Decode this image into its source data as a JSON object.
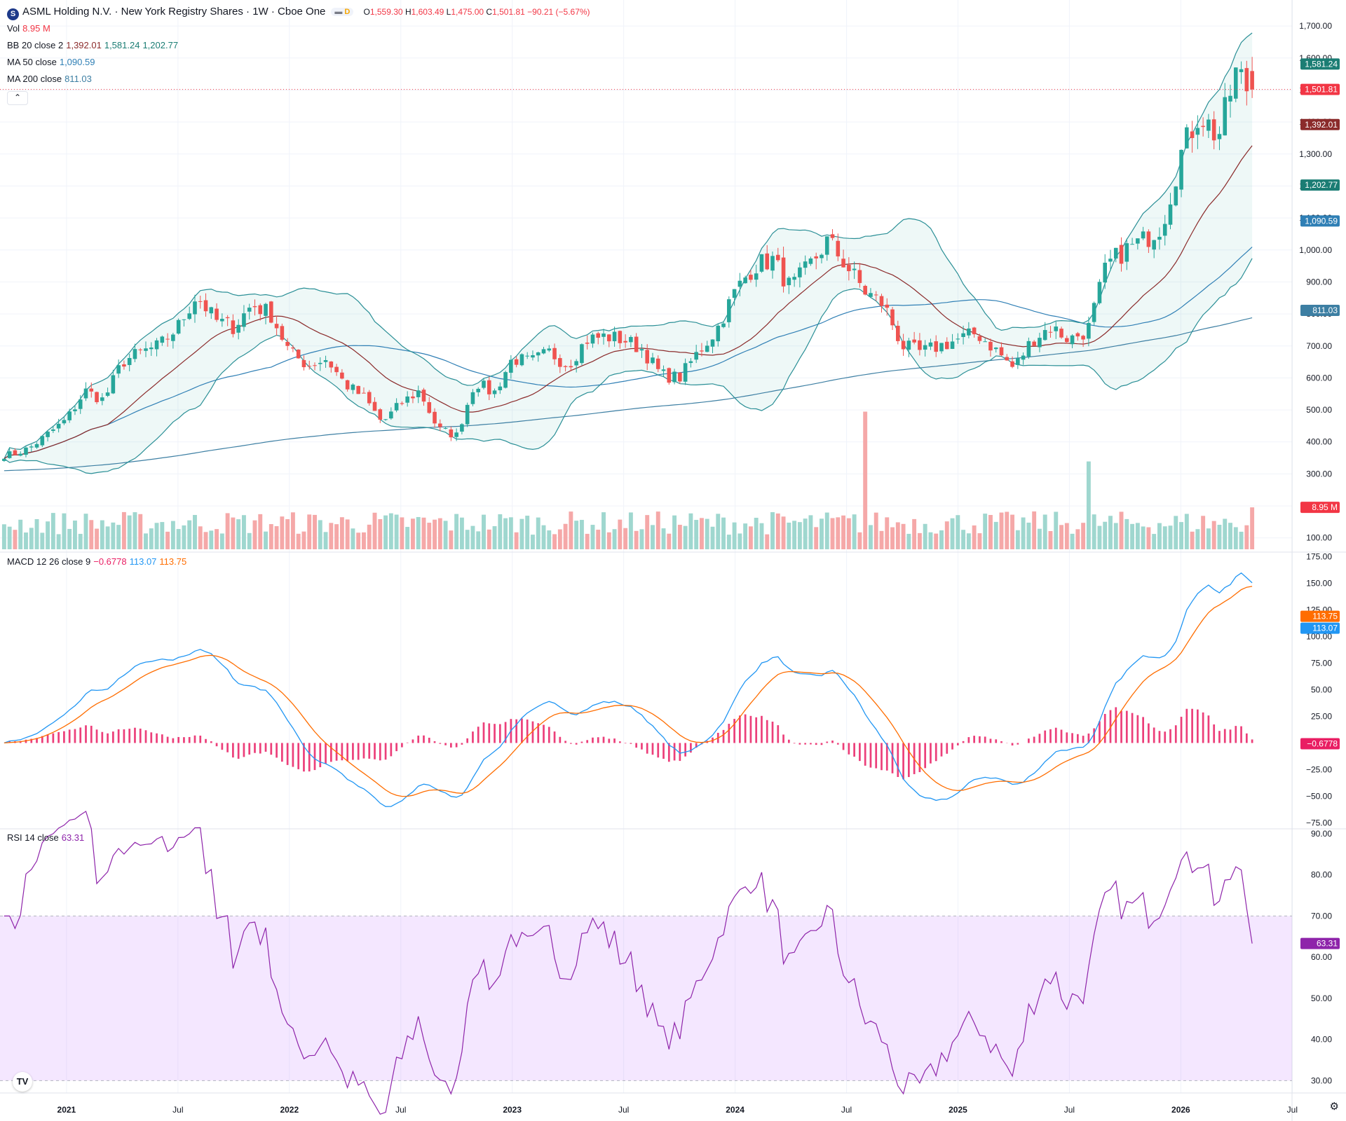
{
  "header": {
    "symbol_letter": "S",
    "title": "ASML Holding N.V. · New York Registry Shares · 1W · Cboe One",
    "chip_label": "D",
    "ohlc": {
      "o_label": "O",
      "o": "1,559.30",
      "h_label": "H",
      "h": "1,603.49",
      "l_label": "L",
      "l": "1,475.00",
      "c_label": "C",
      "c": "1,501.81",
      "change": "−90.21 (−5.67%)"
    }
  },
  "legends": {
    "vol": {
      "name": "Vol",
      "value": "8.95 M"
    },
    "bb": {
      "name": "BB",
      "params": "20 close 2",
      "v1": "1,392.01",
      "v2": "1,581.24",
      "v3": "1,202.77"
    },
    "ma50": {
      "name": "MA",
      "params": "50 close",
      "value": "1,090.59"
    },
    "ma200": {
      "name": "MA",
      "params": "200 close",
      "value": "811.03"
    },
    "macd": {
      "name": "MACD",
      "params": "12 26 close 9",
      "v1": "−0.6778",
      "v2": "113.07",
      "v3": "113.75"
    },
    "rsi": {
      "name": "RSI",
      "params": "14 close",
      "value": "63.31"
    }
  },
  "controls": {
    "collapse": "⌃",
    "logo": "TV",
    "settings": "⚙"
  },
  "colors": {
    "up": "#26a69a",
    "down": "#ef5350",
    "vol_up": "#9fd7cf",
    "vol_down": "#f5a8a8",
    "bb_basis": "#8b2b2b",
    "bb_band": "#2a8f96",
    "bb_fill": "rgba(38,166,154,0.08)",
    "ma50": "#2f7fb5",
    "ma200": "#3d7fa3",
    "macd": "#2196f3",
    "signal": "#ff6d00",
    "hist": "#e91e63",
    "rsi": "#8e24aa",
    "rsi_band": "rgba(186,104,255,0.16)",
    "grid": "#f0f3fa",
    "axis_text": "#131722"
  },
  "chart_data": [
    {
      "type": "candlestick",
      "title": "ASML Holding N.V. · New York Registry Shares · 1W · Cboe One",
      "ylim": [
        60,
        1720
      ],
      "y_ticks": [
        100,
        200,
        300,
        400,
        500,
        600,
        700,
        800,
        900,
        1000,
        1100,
        1200,
        1300,
        1400,
        1500,
        1600,
        1700
      ],
      "x_ticks": [
        "2021",
        "Jul",
        "2022",
        "Jul",
        "2023",
        "Jul",
        "2024",
        "Jul",
        "2025",
        "Jul",
        "2026",
        "Jul"
      ],
      "close_anchors": [
        [
          "2020-10",
          360
        ],
        [
          "2020-11",
          380
        ],
        [
          "2021-01",
          470
        ],
        [
          "2021-02",
          560
        ],
        [
          "2021-03",
          530
        ],
        [
          "2021-04",
          650
        ],
        [
          "2021-05",
          680
        ],
        [
          "2021-06",
          700
        ],
        [
          "2021-07",
          760
        ],
        [
          "2021-08",
          860
        ],
        [
          "2021-09",
          780
        ],
        [
          "2021-10",
          760
        ],
        [
          "2021-11",
          830
        ],
        [
          "2021-12",
          800
        ],
        [
          "2022-01",
          680
        ],
        [
          "2022-02",
          640
        ],
        [
          "2022-03",
          660
        ],
        [
          "2022-04",
          580
        ],
        [
          "2022-05",
          540
        ],
        [
          "2022-06",
          460
        ],
        [
          "2022-07",
          520
        ],
        [
          "2022-08",
          560
        ],
        [
          "2022-09",
          440
        ],
        [
          "2022-10",
          420
        ],
        [
          "2022-11",
          590
        ],
        [
          "2022-12",
          550
        ],
        [
          "2023-01",
          660
        ],
        [
          "2023-02",
          650
        ],
        [
          "2023-03",
          680
        ],
        [
          "2023-04",
          640
        ],
        [
          "2023-05",
          720
        ],
        [
          "2023-06",
          730
        ],
        [
          "2023-07",
          720
        ],
        [
          "2023-08",
          690
        ],
        [
          "2023-09",
          610
        ],
        [
          "2023-10",
          600
        ],
        [
          "2023-11",
          680
        ],
        [
          "2023-12",
          750
        ],
        [
          "2024-01",
          870
        ],
        [
          "2024-02",
          950
        ],
        [
          "2024-03",
          970
        ],
        [
          "2024-04",
          880
        ],
        [
          "2024-05",
          950
        ],
        [
          "2024-06",
          1030
        ],
        [
          "2024-07",
          950
        ],
        [
          "2024-08",
          870
        ],
        [
          "2024-09",
          830
        ],
        [
          "2024-10",
          700
        ],
        [
          "2024-11",
          680
        ],
        [
          "2024-12",
          700
        ],
        [
          "2025-01",
          720
        ],
        [
          "2025-02",
          740
        ],
        [
          "2025-03",
          690
        ],
        [
          "2025-04",
          630
        ],
        [
          "2025-05",
          720
        ],
        [
          "2025-06",
          760
        ],
        [
          "2025-07",
          720
        ],
        [
          "2025-08",
          750
        ],
        [
          "2025-09",
          950
        ],
        [
          "2025-10",
          1000
        ],
        [
          "2025-11",
          1030
        ],
        [
          "2025-12",
          1080
        ],
        [
          "2026-01",
          1300
        ],
        [
          "2026-02",
          1430
        ],
        [
          "2026-03",
          1350
        ],
        [
          "2026-04",
          1560
        ],
        [
          "2026-04-late",
          1501.81
        ]
      ],
      "last": {
        "open": 1559.3,
        "high": 1603.49,
        "low": 1475.0,
        "close": 1501.81
      },
      "price_labels": [
        {
          "value": 1581.24,
          "text": "1,581.24",
          "color": "#1b7d74"
        },
        {
          "value": 1501.81,
          "text": "1,501.81",
          "color": "#f23645"
        },
        {
          "value": 1392.01,
          "text": "1,392.01",
          "color": "#8b2b2b"
        },
        {
          "value": 1202.77,
          "text": "1,202.77",
          "color": "#1b7d74"
        },
        {
          "value": 1090.59,
          "text": "1,090.59",
          "color": "#2f7fb5"
        },
        {
          "value": 811.03,
          "text": "811.03",
          "color": "#3d7fa3"
        },
        {
          "value": 8.95,
          "text": "8.95 M",
          "color": "#f23645",
          "scale": "volume"
        }
      ]
    },
    {
      "type": "bar",
      "title": "Vol",
      "unit": "M",
      "last_value": 8.95,
      "spikes": [
        {
          "date": "2024-08",
          "value": 47
        },
        {
          "date": "2025-08",
          "value": 30
        }
      ]
    },
    {
      "type": "line",
      "title": "MACD",
      "ylim": [
        -80,
        178
      ],
      "y_ticks": [
        -75,
        -50,
        -25,
        0,
        25,
        50,
        75,
        100,
        125,
        150,
        175
      ],
      "last": {
        "histogram": -0.6778,
        "macd": 113.07,
        "signal": 113.75
      },
      "price_labels": [
        {
          "value": 113.75,
          "text": "113.75",
          "color": "#ff6d00"
        },
        {
          "value": 113.07,
          "text": "113.07",
          "color": "#2196f3"
        },
        {
          "value": -0.6778,
          "text": "−0.6778",
          "color": "#e91e63"
        }
      ]
    },
    {
      "type": "line",
      "title": "RSI",
      "ylim": [
        27,
        91
      ],
      "y_ticks": [
        30,
        40,
        50,
        60,
        70,
        80,
        90
      ],
      "band": [
        30,
        70
      ],
      "last_value": 63.31,
      "price_labels": [
        {
          "value": 63.31,
          "text": "63.31",
          "color": "#8e24aa"
        }
      ]
    }
  ]
}
